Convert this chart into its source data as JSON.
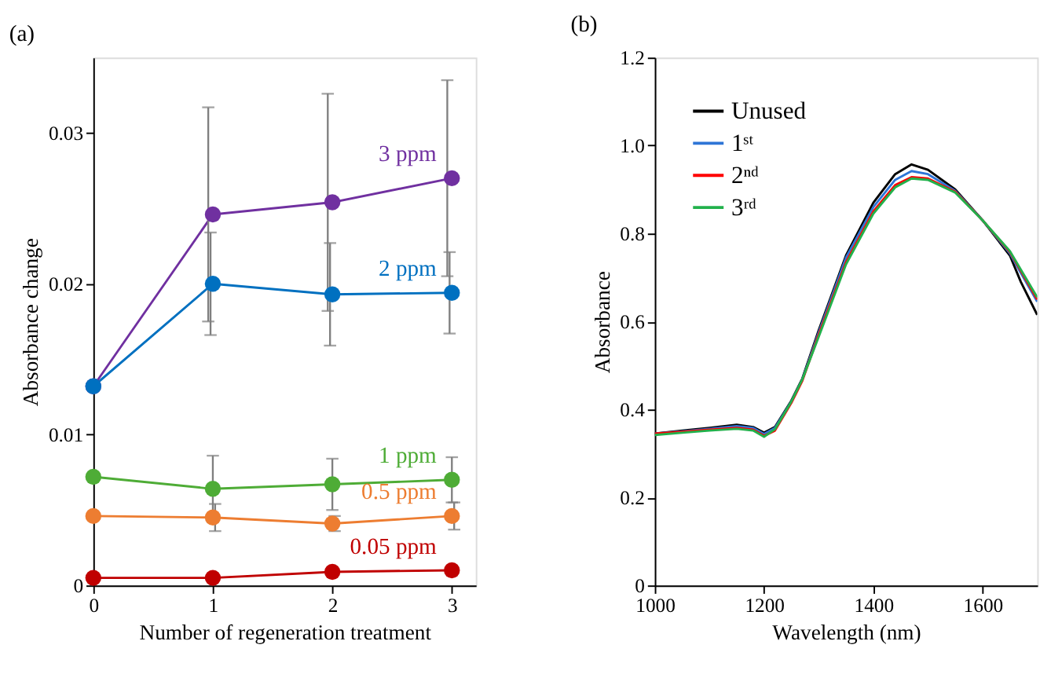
{
  "chart_data": [
    {
      "type": "line",
      "title": "(a)",
      "xlabel": "Number of regeneration treatment",
      "ylabel": "Absorbance change",
      "x": [
        0,
        1,
        2,
        3
      ],
      "xlim": [
        0,
        3.2
      ],
      "xticks": [
        0,
        1,
        2,
        3
      ],
      "ylim": [
        0,
        0.035
      ],
      "yticks": [
        0,
        0.01,
        0.02,
        0.03
      ],
      "marker": "circle",
      "grid": false,
      "legend": false,
      "series": [
        {
          "name": "3 ppm",
          "color": "#7030a0",
          "values": [
            0.0132,
            0.0246,
            0.0254,
            0.027
          ],
          "errors": [
            null,
            0.0071,
            0.0072,
            0.0065
          ]
        },
        {
          "name": "2 ppm",
          "color": "#0070c0",
          "values": [
            0.0132,
            0.02,
            0.0193,
            0.0194
          ],
          "errors": [
            null,
            0.0034,
            0.0034,
            0.0027
          ]
        },
        {
          "name": "1 ppm",
          "color": "#4eac36",
          "values": [
            0.0072,
            0.0064,
            0.0067,
            0.007
          ],
          "errors": [
            null,
            0.0022,
            0.0017,
            0.0015
          ]
        },
        {
          "name": "0.5 ppm",
          "color": "#ed7d31",
          "values": [
            0.0046,
            0.0045,
            0.0041,
            0.0046
          ],
          "errors": [
            null,
            0.0009,
            0.0005,
            0.0009
          ]
        },
        {
          "name": "0.05 ppm",
          "color": "#c00000",
          "values": [
            0.0005,
            0.0005,
            0.0009,
            0.001
          ],
          "errors": [
            null,
            null,
            null,
            null
          ]
        }
      ]
    },
    {
      "type": "line",
      "title": "(b)",
      "xlabel": "Wavelength (nm)",
      "ylabel": "Absorbance",
      "x": [
        1000,
        1050,
        1100,
        1150,
        1180,
        1200,
        1220,
        1250,
        1270,
        1300,
        1350,
        1400,
        1440,
        1470,
        1500,
        1550,
        1600,
        1650,
        1670,
        1700
      ],
      "xlim": [
        1000,
        1700
      ],
      "xticks": [
        1000,
        1200,
        1400,
        1600
      ],
      "ylim": [
        0,
        1.2
      ],
      "yticks": [
        0,
        0.2,
        0.4,
        0.6,
        0.8,
        {
          "value": 1,
          "label": "1.0"
        },
        1.2
      ],
      "marker": "none",
      "grid": false,
      "legend": "top left",
      "series": [
        {
          "name": "Unused",
          "color": "#000000",
          "values": [
            0.345,
            0.352,
            0.358,
            0.365,
            0.36,
            0.347,
            0.36,
            0.42,
            0.47,
            0.58,
            0.75,
            0.87,
            0.935,
            0.957,
            0.945,
            0.9,
            0.83,
            0.75,
            0.69,
            0.615
          ]
        },
        {
          "name": "1ˢᵗ",
          "color": "#2e75d6",
          "values": [
            0.345,
            0.35,
            0.356,
            0.362,
            0.358,
            0.344,
            0.358,
            0.418,
            0.468,
            0.575,
            0.745,
            0.86,
            0.922,
            0.942,
            0.935,
            0.897,
            0.83,
            0.755,
            0.71,
            0.645
          ]
        },
        {
          "name": "2ⁿᵈ",
          "color": "#ff0000",
          "values": [
            0.345,
            0.349,
            0.354,
            0.358,
            0.354,
            0.34,
            0.352,
            0.415,
            0.465,
            0.57,
            0.735,
            0.85,
            0.91,
            0.928,
            0.925,
            0.895,
            0.83,
            0.758,
            0.715,
            0.65
          ]
        },
        {
          "name": "3ʳᵈ",
          "color": "#22b14c",
          "values": [
            0.342,
            0.347,
            0.352,
            0.356,
            0.352,
            0.338,
            0.355,
            0.418,
            0.468,
            0.565,
            0.73,
            0.845,
            0.905,
            0.925,
            0.922,
            0.893,
            0.83,
            0.76,
            0.718,
            0.655
          ]
        }
      ]
    }
  ]
}
